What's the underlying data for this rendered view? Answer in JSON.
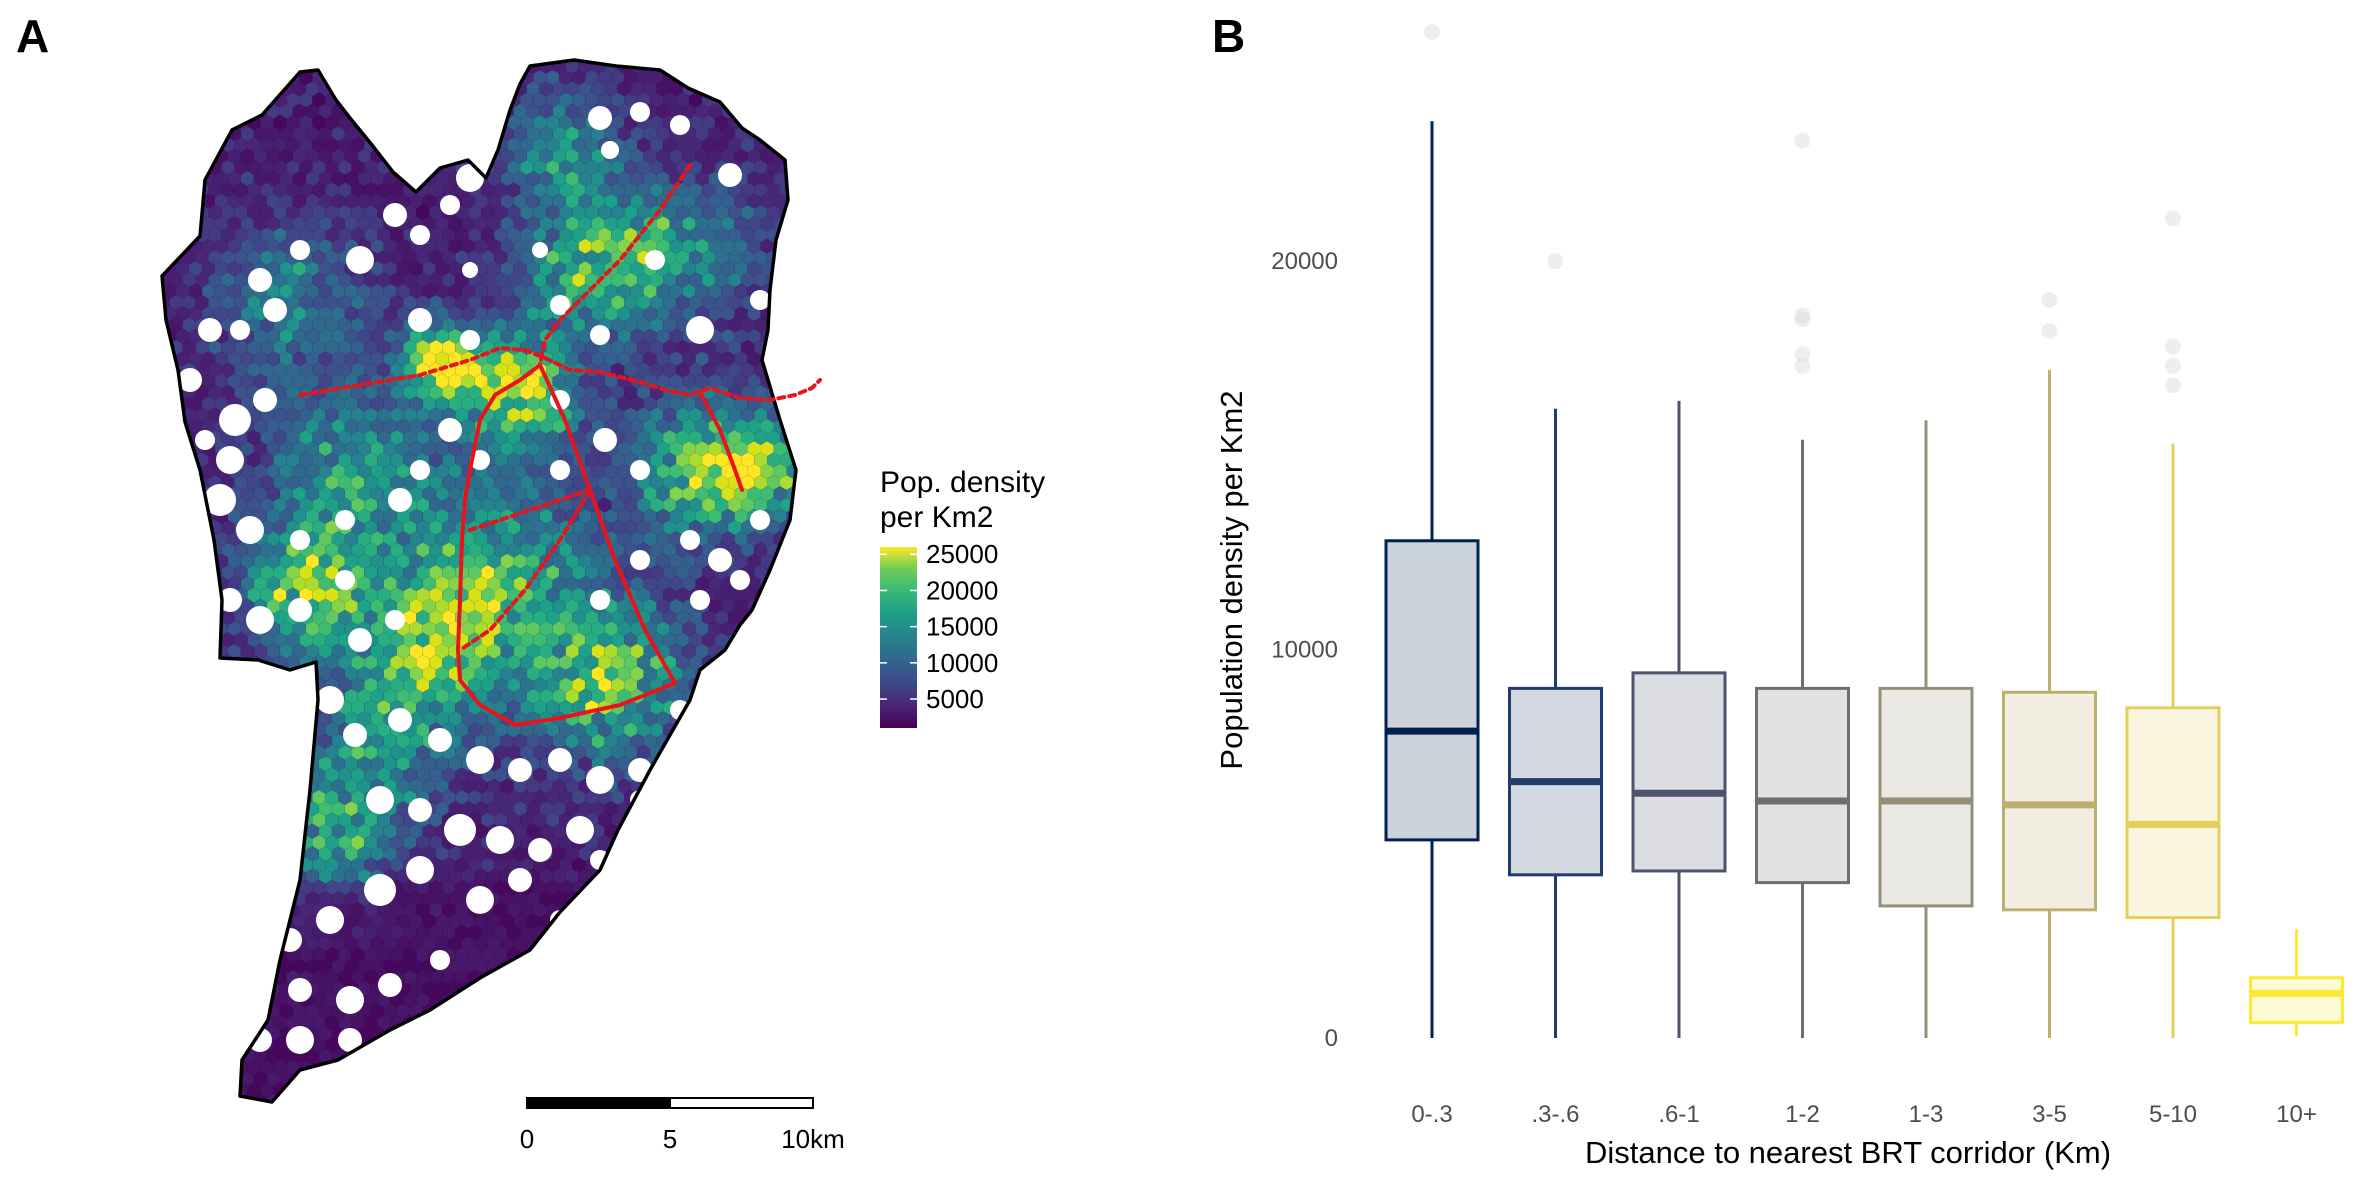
{
  "panels": {
    "a_label": "A",
    "b_label": "B"
  },
  "map": {
    "legend_title_line1": "Pop. density",
    "legend_title_line2": "per Km2",
    "legend_ticks": [
      "25000",
      "20000",
      "15000",
      "10000",
      "5000"
    ],
    "legend_tick_values": [
      25000,
      20000,
      15000,
      10000,
      5000
    ],
    "legend_range": [
      1000,
      26000
    ],
    "scale_labels": [
      "0",
      "5",
      "10km"
    ],
    "colors": {
      "corridor": "#e8141c",
      "boundary": "#000000",
      "viridis_low": "#440154",
      "viridis_high": "#fde725"
    }
  },
  "chart_data": {
    "type": "box",
    "xlabel": "Distance to nearest BRT corridor (Km)",
    "ylabel": "Population density per Km2",
    "ylim": [
      0,
      26000
    ],
    "yticks": [
      0,
      10000,
      20000
    ],
    "ytick_labels": [
      "0",
      "10000",
      "20000"
    ],
    "grid": false,
    "categories": [
      "0-.3",
      ".3-.6",
      ".6-1",
      "1-2",
      "1-3",
      "3-5",
      "5-10",
      "10+"
    ],
    "boxes": [
      {
        "category": "0-.3",
        "lower_whisker": 0,
        "q1": 5100,
        "median": 7900,
        "q3": 12800,
        "upper_whisker": 23600,
        "outliers": [
          25900
        ],
        "color": "#00204d"
      },
      {
        "category": ".3-.6",
        "lower_whisker": 0,
        "q1": 4200,
        "median": 6600,
        "q3": 9000,
        "upper_whisker": 16200,
        "outliers": [
          20000
        ],
        "color": "#213d6b"
      },
      {
        "category": ".6-1",
        "lower_whisker": 0,
        "q1": 4300,
        "median": 6300,
        "q3": 9400,
        "upper_whisker": 16400,
        "outliers": [],
        "color": "#4c546c"
      },
      {
        "category": "1-2",
        "lower_whisker": 0,
        "q1": 4000,
        "median": 6100,
        "q3": 9000,
        "upper_whisker": 15400,
        "outliers": [
          23100,
          18600,
          18500,
          17600,
          17300
        ],
        "color": "#6f6f70"
      },
      {
        "category": "1-3",
        "lower_whisker": 0,
        "q1": 3400,
        "median": 6100,
        "q3": 9000,
        "upper_whisker": 15900,
        "outliers": [],
        "color": "#958f78"
      },
      {
        "category": "3-5",
        "lower_whisker": 0,
        "q1": 3300,
        "median": 6000,
        "q3": 8900,
        "upper_whisker": 17200,
        "outliers": [
          19000,
          18200
        ],
        "color": "#bcaf6f"
      },
      {
        "category": "5-10",
        "lower_whisker": 0,
        "q1": 3100,
        "median": 5500,
        "q3": 8500,
        "upper_whisker": 15300,
        "outliers": [
          21100,
          17800,
          17300,
          16800
        ],
        "color": "#e4cf5b"
      },
      {
        "category": "10+",
        "lower_whisker": 50,
        "q1": 400,
        "median": 1150,
        "q3": 1550,
        "upper_whisker": 2800,
        "outliers": [],
        "color": "#fde833"
      }
    ]
  }
}
